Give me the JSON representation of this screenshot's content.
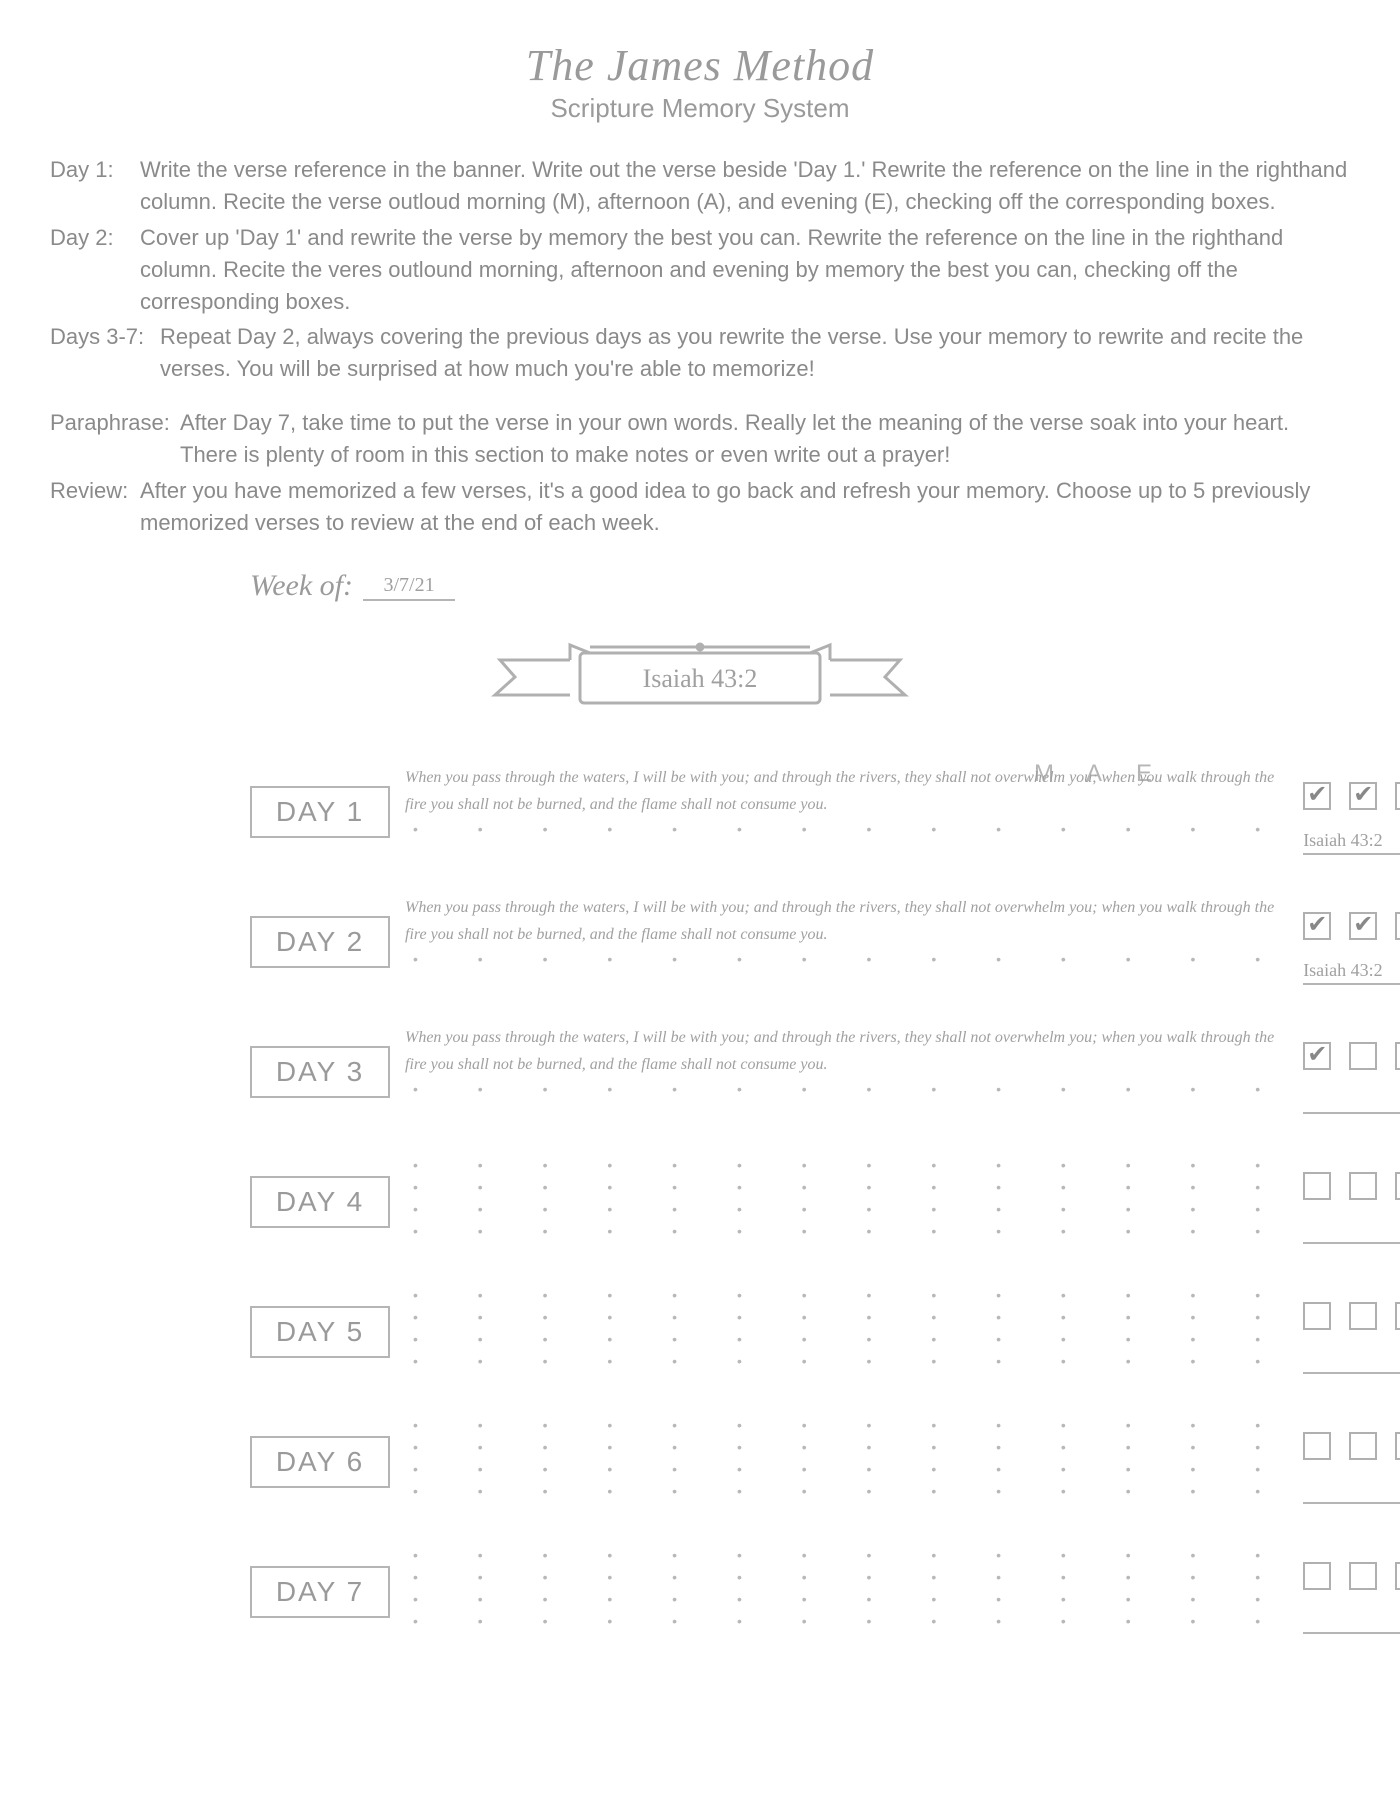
{
  "header": {
    "title": "The James Method",
    "subtitle": "Scripture Memory System"
  },
  "instructions": [
    {
      "label": "Day 1:",
      "text": "Write the verse reference in the banner.  Write out the verse beside 'Day 1.'  Rewrite the reference on the line in the righthand column.  Recite the verse outloud morning (M), afternoon (A), and evening (E), checking off the corresponding boxes."
    },
    {
      "label": "Day 2:",
      "text": "Cover up 'Day 1' and rewrite the verse by memory the best you can.  Rewrite the reference on the line in the righthand column.  Recite the veres outlound morning, afternoon and evening by memory the best you can, checking off the corresponding boxes."
    },
    {
      "label": "Days 3-7:",
      "text": "Repeat Day 2, always covering the previous days as you rewrite the verse.  Use your memory to rewrite and recite the verses.  You will be surprised at how much you're able to memorize!"
    }
  ],
  "notes": [
    {
      "label": "Paraphrase:",
      "text": "After Day 7, take time to put the verse in your own words.  Really let the meaning of the verse soak into your heart.  There is plenty of room in this section to make notes or even write out a prayer!"
    },
    {
      "label": "Review:",
      "text": "After you have memorized a few verses, it's a good idea to go back and refresh your memory.  Choose up to 5 previously memorized verses to review at the end of each week."
    }
  ],
  "week": {
    "label": "Week of:",
    "date": "3/7/21"
  },
  "banner": {
    "reference": "Isaiah 43:2"
  },
  "mae": {
    "m": "M",
    "a": "A",
    "e": "E"
  },
  "colors": {
    "text": "#9a9a9a",
    "border": "#b5b5b5",
    "handwriting": "#a0a0a0",
    "background": "#ffffff"
  },
  "days": [
    {
      "label": "DAY 1",
      "verse": "When you pass through the waters, I will be with you; and through the rivers, they shall not overwhelm you; when you walk through the fire you shall not be burned, and the flame shall not consume you.",
      "checks": [
        true,
        true,
        true
      ],
      "ref": "Isaiah 43:2"
    },
    {
      "label": "DAY 2",
      "verse": "When you pass through the waters, I will be with you; and through the rivers, they shall not overwhelm you; when you walk through the fire you shall not be burned, and the flame shall not consume you.",
      "checks": [
        true,
        true,
        true
      ],
      "ref": "Isaiah 43:2"
    },
    {
      "label": "DAY 3",
      "verse": "When you pass through the waters, I will be with you; and through the rivers, they shall not overwhelm you; when you walk through the fire you shall not be burned, and the flame shall not consume you.",
      "checks": [
        true,
        false,
        false
      ],
      "ref": ""
    },
    {
      "label": "DAY 4",
      "verse": "",
      "checks": [
        false,
        false,
        false
      ],
      "ref": ""
    },
    {
      "label": "DAY 5",
      "verse": "",
      "checks": [
        false,
        false,
        false
      ],
      "ref": ""
    },
    {
      "label": "DAY 6",
      "verse": "",
      "checks": [
        false,
        false,
        false
      ],
      "ref": ""
    },
    {
      "label": "DAY 7",
      "verse": "",
      "checks": [
        false,
        false,
        false
      ],
      "ref": ""
    }
  ]
}
